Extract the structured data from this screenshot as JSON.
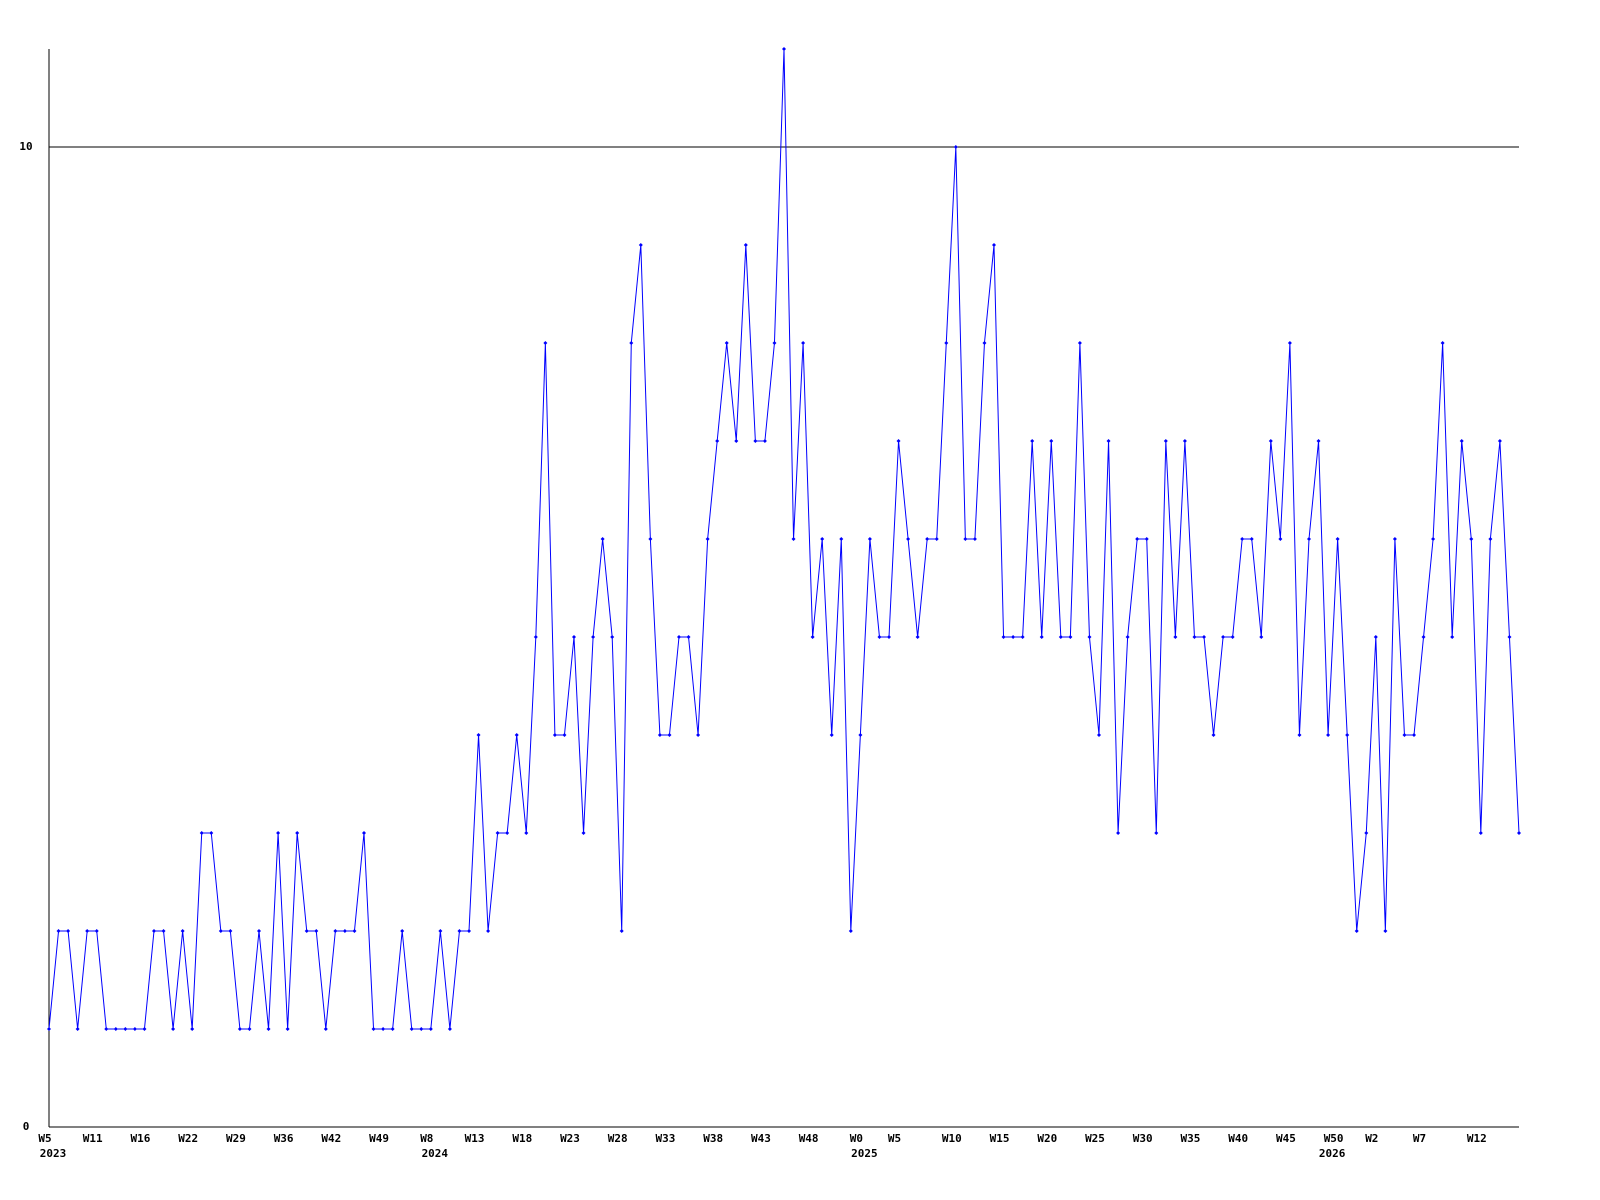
{
  "chart_data": {
    "type": "line",
    "categories": [
      "W5",
      null,
      null,
      null,
      null,
      "W11",
      null,
      null,
      null,
      null,
      "W16",
      null,
      null,
      null,
      null,
      "W22",
      null,
      null,
      null,
      null,
      "W29",
      null,
      null,
      null,
      null,
      "W36",
      null,
      null,
      null,
      null,
      "W42",
      null,
      null,
      null,
      null,
      "W49",
      null,
      null,
      null,
      null,
      "W8",
      null,
      null,
      null,
      null,
      "W13",
      null,
      null,
      null,
      null,
      "W18",
      null,
      null,
      null,
      null,
      "W23",
      null,
      null,
      null,
      null,
      "W28",
      null,
      null,
      null,
      null,
      "W33",
      null,
      null,
      null,
      null,
      "W38",
      null,
      null,
      null,
      null,
      "W43",
      null,
      null,
      null,
      null,
      "W48",
      null,
      null,
      null,
      null,
      "W0",
      null,
      null,
      null,
      "W5",
      null,
      null,
      null,
      null,
      null,
      "W10",
      null,
      null,
      null,
      null,
      "W15",
      null,
      null,
      null,
      null,
      "W20",
      null,
      null,
      null,
      null,
      "W25",
      null,
      null,
      null,
      null,
      "W30",
      null,
      null,
      null,
      null,
      "W35",
      null,
      null,
      null,
      null,
      "W40",
      null,
      null,
      null,
      null,
      "W45",
      null,
      null,
      null,
      null,
      "W50",
      null,
      null,
      null,
      "W2",
      null,
      null,
      null,
      null,
      "W7",
      null,
      null,
      null,
      null,
      null,
      "W12",
      null,
      null,
      null,
      null
    ],
    "years": [
      "2023",
      null,
      null,
      null,
      null,
      null,
      null,
      null,
      null,
      null,
      null,
      null,
      null,
      null,
      null,
      null,
      null,
      null,
      null,
      null,
      null,
      null,
      null,
      null,
      null,
      null,
      null,
      null,
      null,
      null,
      null,
      null,
      null,
      null,
      null,
      null,
      null,
      null,
      null,
      null,
      "2024",
      null,
      null,
      null,
      null,
      null,
      null,
      null,
      null,
      null,
      null,
      null,
      null,
      null,
      null,
      null,
      null,
      null,
      null,
      null,
      null,
      null,
      null,
      null,
      null,
      null,
      null,
      null,
      null,
      null,
      null,
      null,
      null,
      null,
      null,
      null,
      null,
      null,
      null,
      null,
      null,
      null,
      null,
      null,
      null,
      "2025",
      null,
      null,
      null,
      null,
      null,
      null,
      null,
      null,
      null,
      null,
      null,
      null,
      null,
      null,
      null,
      null,
      null,
      null,
      null,
      null,
      null,
      null,
      null,
      null,
      null,
      null,
      null,
      null,
      null,
      null,
      null,
      null,
      null,
      null,
      null,
      null,
      null,
      null,
      null,
      null,
      null,
      null,
      null,
      null,
      null,
      null,
      null,
      null,
      "2026",
      null,
      null,
      null,
      null,
      null,
      null,
      null,
      null,
      null,
      null,
      null,
      null,
      null,
      null,
      null
    ],
    "series": [
      {
        "color": "#0000ff",
        "values": [
          1,
          2,
          2,
          1,
          2,
          2,
          1,
          1,
          1,
          1,
          1,
          2,
          2,
          1,
          2,
          1,
          3,
          3,
          2,
          2,
          1,
          1,
          2,
          1,
          3,
          1,
          3,
          2,
          2,
          1,
          2,
          2,
          2,
          3,
          1,
          1,
          1,
          2,
          1,
          1,
          1,
          2,
          1,
          2,
          2,
          4,
          2,
          3,
          3,
          4,
          3,
          5,
          8,
          4,
          4,
          5,
          3,
          5,
          6,
          5,
          2,
          8,
          9,
          6,
          4,
          4,
          5,
          5,
          4,
          6,
          7,
          8,
          7,
          9,
          7,
          7,
          8,
          11,
          6,
          8,
          5,
          6,
          4,
          6,
          2,
          4,
          6,
          5,
          5,
          7,
          6,
          5,
          6,
          6,
          8,
          10,
          6,
          6,
          8,
          9,
          5,
          5,
          5,
          7,
          5,
          7,
          5,
          5,
          8,
          5,
          4,
          7,
          3,
          5,
          6,
          6,
          3,
          7,
          5,
          7,
          5,
          5,
          4,
          5,
          5,
          6,
          6,
          5,
          7,
          6,
          8,
          4,
          6,
          7,
          4,
          6,
          4,
          2,
          3,
          5,
          2,
          6,
          4,
          4,
          5,
          6,
          8,
          5,
          7,
          6,
          3,
          6,
          7,
          5,
          3
        ]
      }
    ],
    "ylim": [
      0,
      11
    ],
    "yticks": [
      0,
      10
    ],
    "grid": true
  }
}
